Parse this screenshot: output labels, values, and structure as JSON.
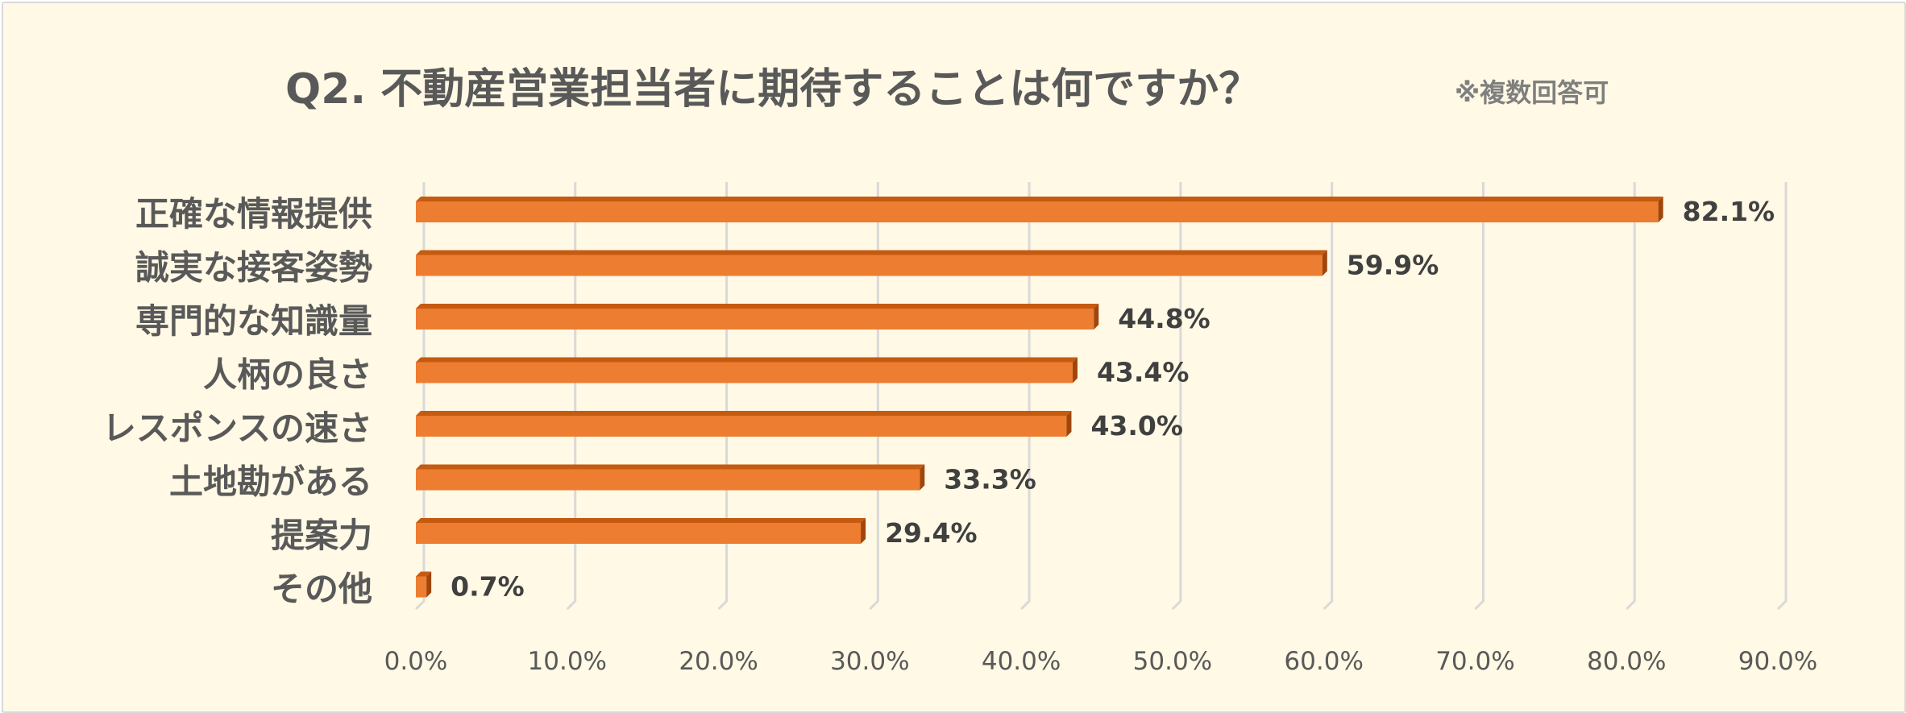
{
  "chart_data": {
    "type": "bar",
    "orientation": "horizontal",
    "title": "Q2. 不動産営業担当者に期待することは何ですか？",
    "subtitle": "※複数回答可",
    "categories": [
      "正確な情報提供",
      "誠実な接客姿勢",
      "専門的な知識量",
      "人柄の良さ",
      "レスポンスの速さ",
      "土地勘がある",
      "提案力",
      "その他"
    ],
    "values": [
      82.1,
      59.9,
      44.8,
      43.4,
      43.0,
      33.3,
      29.4,
      0.7
    ],
    "value_labels": [
      "82.1%",
      "59.9%",
      "44.8%",
      "43.4%",
      "43.0%",
      "33.3%",
      "29.4%",
      "0.7%"
    ],
    "xlim": [
      0,
      90
    ],
    "xticks": [
      "0.0%",
      "10.0%",
      "20.0%",
      "30.0%",
      "40.0%",
      "50.0%",
      "60.0%",
      "70.0%",
      "80.0%",
      "90.0%"
    ],
    "xlabel": "",
    "ylabel": "",
    "grid": "vertical",
    "legend": "none",
    "colors": {
      "bar": "#ed7d31",
      "bar_top": "#c55a11",
      "bar_side": "#a0460c",
      "grid": "#d9d9d9",
      "background": "#fff9e5"
    }
  }
}
